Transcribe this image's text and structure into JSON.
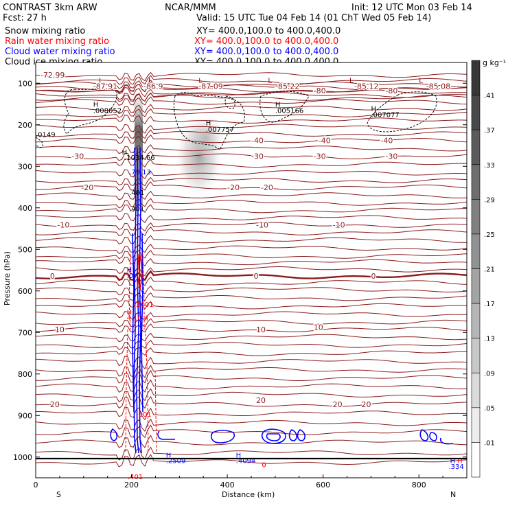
{
  "header": {
    "title_left": "CONTRAST  3km ARW",
    "forecast": "Fcst:    27 h",
    "center": "NCAR/MMM",
    "init": "Init: 12 UTC Mon 03 Feb 14",
    "valid": "Valid: 15 UTC Tue 04 Feb 14 (01 ChT Wed 05 Feb 14)"
  },
  "legend": [
    {
      "name": "Snow mixing ratio",
      "color": "#000000",
      "xy": "XY=  400.0,100.0 to 400.0,400.0"
    },
    {
      "name": "Rain water mixing ratio",
      "color": "#ff0000",
      "xy": "XY=  400.0,100.0 to 400.0,400.0"
    },
    {
      "name": "Cloud water mixing ratio",
      "color": "#0000ff",
      "xy": "XY=  400.0,100.0 to 400.0,400.0"
    },
    {
      "name": "Cloud ice mixing ratio",
      "color": "#000000",
      "xy": "XY=  400.0,100.0 to 400.0,400.0"
    }
  ],
  "colorbar": {
    "unit": "g kg⁻¹",
    "levels": [
      ".01",
      ".05",
      ".09",
      ".13",
      ".17",
      ".21",
      ".25",
      ".29",
      ".33",
      ".37",
      ".41"
    ]
  },
  "chart_data": {
    "type": "contour",
    "xlabel": "Distance (km)",
    "ylabel": "Pressure (hPa)",
    "x_ticks": [
      0,
      200,
      400,
      600,
      800
    ],
    "y_ticks": [
      100,
      200,
      300,
      400,
      500,
      600,
      700,
      800,
      900,
      1000
    ],
    "xlim": [
      0,
      900
    ],
    "ylim": [
      1050,
      50
    ],
    "x_end_labels": {
      "left": "S",
      "right": "N"
    },
    "isotherm_labels": [
      {
        "x": 10,
        "p": 80,
        "text": "-72.99"
      },
      {
        "x": 340,
        "p": 107,
        "text": "-87.09"
      },
      {
        "x": 120,
        "p": 107,
        "text": "-87.91"
      },
      {
        "x": 225,
        "p": 107,
        "text": "-86.9"
      },
      {
        "x": 500,
        "p": 107,
        "text": "-85.22"
      },
      {
        "x": 665,
        "p": 107,
        "text": "-85.12"
      },
      {
        "x": 815,
        "p": 107,
        "text": "-85.08"
      },
      {
        "x": 580,
        "p": 118,
        "text": "-80"
      },
      {
        "x": 730,
        "p": 118,
        "text": "-80"
      },
      {
        "x": 450,
        "p": 238,
        "text": "-40"
      },
      {
        "x": 590,
        "p": 238,
        "text": "-40"
      },
      {
        "x": 720,
        "p": 238,
        "text": "-40"
      },
      {
        "x": 75,
        "p": 276,
        "text": "-30"
      },
      {
        "x": 450,
        "p": 276,
        "text": "-30"
      },
      {
        "x": 580,
        "p": 276,
        "text": "-30"
      },
      {
        "x": 730,
        "p": 276,
        "text": "-30"
      },
      {
        "x": 95,
        "p": 351,
        "text": "-20"
      },
      {
        "x": 400,
        "p": 351,
        "text": "-20"
      },
      {
        "x": 470,
        "p": 351,
        "text": "-20"
      },
      {
        "x": 45,
        "p": 441,
        "text": "-10"
      },
      {
        "x": 460,
        "p": 441,
        "text": "-10"
      },
      {
        "x": 620,
        "p": 441,
        "text": "-10"
      },
      {
        "x": 30,
        "p": 564,
        "text": "0"
      },
      {
        "x": 455,
        "p": 564,
        "text": "0"
      },
      {
        "x": 700,
        "p": 564,
        "text": "0"
      },
      {
        "x": 40,
        "p": 693,
        "text": "10"
      },
      {
        "x": 460,
        "p": 693,
        "text": "10"
      },
      {
        "x": 580,
        "p": 687,
        "text": "10"
      },
      {
        "x": 30,
        "p": 873,
        "text": "20"
      },
      {
        "x": 460,
        "p": 863,
        "text": "20"
      },
      {
        "x": 620,
        "p": 873,
        "text": "20"
      },
      {
        "x": 680,
        "p": 873,
        "text": "20"
      }
    ],
    "point_labels": [
      {
        "x": 120,
        "p": 150,
        "text": "H",
        "color": "#000000"
      },
      {
        "x": 120,
        "p": 165,
        "text": ".008052",
        "color": "#000000"
      },
      {
        "x": 355,
        "p": 195,
        "text": "H",
        "color": "#000000"
      },
      {
        "x": 355,
        "p": 210,
        "text": ".007757",
        "color": "#000000"
      },
      {
        "x": 500,
        "p": 150,
        "text": "H",
        "color": "#000000"
      },
      {
        "x": 500,
        "p": 165,
        "text": ".005166",
        "color": "#000000"
      },
      {
        "x": 700,
        "p": 160,
        "text": "H",
        "color": "#000000"
      },
      {
        "x": 700,
        "p": 175,
        "text": ".007077",
        "color": "#000000"
      },
      {
        "x": 0,
        "p": 223,
        "text": ".0149",
        "color": "#000000"
      },
      {
        "x": 180,
        "p": 265,
        "text": "H",
        "color": "#000000"
      },
      {
        "x": 185,
        "p": 278,
        "text": ".1034.66",
        "color": "#000000"
      },
      {
        "x": 195,
        "p": 313,
        "text": ".75.13",
        "color": "#0000ff"
      },
      {
        "x": 195,
        "p": 362,
        "text": ".401",
        "color": "#000000"
      },
      {
        "x": 195,
        "p": 401,
        "text": ".401",
        "color": "#000000"
      },
      {
        "x": 190,
        "p": 548,
        "text": "H",
        "color": "#0000ff"
      },
      {
        "x": 190,
        "p": 562,
        "text": ".0",
        "color": "#0000ff"
      },
      {
        "x": 205,
        "p": 632,
        "text": ".2001",
        "color": "#ff0000"
      },
      {
        "x": 190,
        "p": 650,
        "text": "H",
        "color": "#ff0000"
      },
      {
        "x": 190,
        "p": 664,
        "text": "4.10 4",
        "color": "#ff0000"
      },
      {
        "x": 210,
        "p": 896,
        "text": ".001",
        "color": "#ff0000"
      },
      {
        "x": 272,
        "p": 995,
        "text": "H",
        "color": "#0000ff"
      },
      {
        "x": 272,
        "p": 1008,
        "text": ".2509",
        "color": "#0000ff"
      },
      {
        "x": 418,
        "p": 995,
        "text": "H",
        "color": "#0000ff"
      },
      {
        "x": 418,
        "p": 1008,
        "text": ".4094",
        "color": "#0000ff"
      },
      {
        "x": 472,
        "p": 1018,
        "text": "0",
        "color": "#ff0000"
      },
      {
        "x": 865,
        "p": 1008,
        "text": "H",
        "color": "#0000ff"
      },
      {
        "x": 880,
        "p": 1008,
        "text": "H",
        "color": "#ff0000"
      },
      {
        "x": 862,
        "p": 1022,
        "text": ".334",
        "color": "#0000ff"
      },
      {
        "x": 192,
        "p": 1047,
        "text": ".401",
        "color": "#ff0000"
      },
      {
        "x": 132,
        "p": 92,
        "text": "L",
        "color": "#8b0000"
      },
      {
        "x": 235,
        "p": 92,
        "text": "L",
        "color": "#8b0000"
      },
      {
        "x": 340,
        "p": 92,
        "text": "L",
        "color": "#8b0000"
      },
      {
        "x": 485,
        "p": 92,
        "text": "L",
        "color": "#8b0000"
      },
      {
        "x": 655,
        "p": 92,
        "text": "L",
        "color": "#8b0000"
      },
      {
        "x": 800,
        "p": 92,
        "text": "L",
        "color": "#8b0000"
      }
    ]
  }
}
